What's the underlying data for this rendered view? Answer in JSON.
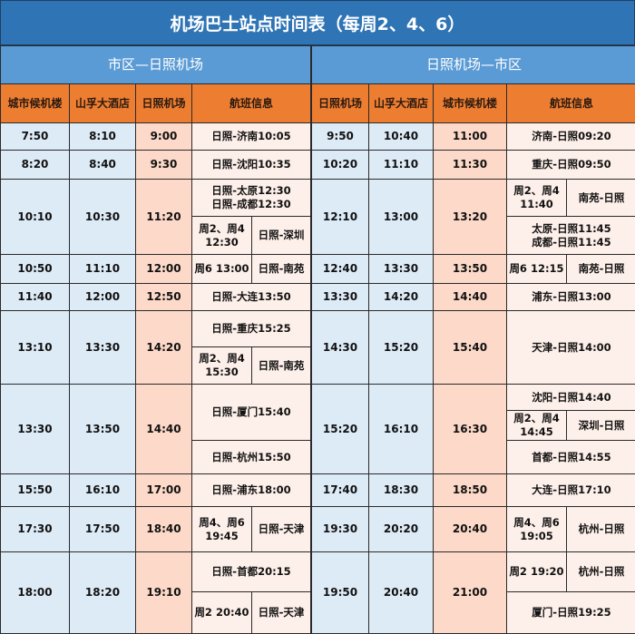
{
  "title": "机场巴士站点时间表（每周2、4、6）",
  "colors": {
    "title_bg": "#2f74b5",
    "section_bg": "#5b9bd5",
    "header_bg": "#ed7d31",
    "stop_bg": "#ddebf7",
    "terminal_bg": "#fcd9c8",
    "flight_bg": "#fdefe9"
  },
  "left": {
    "section": "市区—日照机场",
    "headers": [
      "城市候机楼",
      "山孚大酒店",
      "日照机场",
      "航班信息"
    ],
    "rows": [
      {
        "t": [
          "7:50",
          "8:10",
          "9:00"
        ],
        "flights": [
          {
            "text": "日照-济南10:05"
          }
        ]
      },
      {
        "t": [
          "8:20",
          "8:40",
          "9:30"
        ],
        "flights": [
          {
            "text": "日照-沈阳10:35"
          }
        ]
      },
      {
        "t": [
          "10:10",
          "10:30",
          "11:20"
        ],
        "flights": [
          {
            "text": "日照-太原12:30\n日照-成都12:30"
          },
          {
            "days": "周2、周4\n12:30",
            "route": "日照-深圳"
          }
        ]
      },
      {
        "t": [
          "10:50",
          "11:10",
          "12:00"
        ],
        "flights": [
          {
            "days": "周6  13:00",
            "route": "日照-南苑"
          }
        ]
      },
      {
        "t": [
          "11:40",
          "12:00",
          "12:50"
        ],
        "flights": [
          {
            "text": "日照-大连13:50"
          }
        ]
      },
      {
        "t": [
          "13:10",
          "13:30",
          "14:20"
        ],
        "flights": [
          {
            "text": "日照-重庆15:25"
          },
          {
            "days": "周2、周4\n15:30",
            "route": "日照-南苑"
          }
        ]
      },
      {
        "t": [
          "13:30",
          "13:50",
          "14:40"
        ],
        "flights": [
          {
            "text": "日照-厦门15:40"
          },
          {
            "text": "日照-杭州15:50"
          }
        ]
      },
      {
        "t": [
          "15:50",
          "16:10",
          "17:00"
        ],
        "flights": [
          {
            "text": "日照-浦东18:00"
          }
        ]
      },
      {
        "t": [
          "17:30",
          "17:50",
          "18:40"
        ],
        "flights": [
          {
            "days": "周4、周6\n19:45",
            "route": "日照-天津"
          }
        ]
      },
      {
        "t": [
          "18:00",
          "18:20",
          "19:10"
        ],
        "flights": [
          {
            "text": "日照-首都20:15"
          },
          {
            "days": "周2  20:40",
            "route": "日照-天津"
          }
        ]
      }
    ]
  },
  "right": {
    "section": "日照机场—市区",
    "headers": [
      "日照机场",
      "山孚大酒店",
      "城市候机楼",
      "航班信息"
    ],
    "rows": [
      {
        "t": [
          "9:50",
          "10:40",
          "11:00"
        ],
        "flights": [
          {
            "text": "济南-日照09:20"
          }
        ]
      },
      {
        "t": [
          "10:20",
          "11:10",
          "11:30"
        ],
        "flights": [
          {
            "text": "重庆-日照09:50"
          }
        ]
      },
      {
        "t": [
          "12:10",
          "13:00",
          "13:20"
        ],
        "flights": [
          {
            "days": "周2、周4\n11:40",
            "route": "南苑-日照"
          },
          {
            "text": "太原-日照11:45\n成都-日照11:45"
          }
        ]
      },
      {
        "t": [
          "12:40",
          "13:30",
          "13:50"
        ],
        "flights": [
          {
            "days": "周6  12:15",
            "route": "南苑-日照"
          }
        ]
      },
      {
        "t": [
          "13:30",
          "14:20",
          "14:40"
        ],
        "flights": [
          {
            "text": "浦东-日照13:00"
          }
        ]
      },
      {
        "t": [
          "14:30",
          "15:20",
          "15:40"
        ],
        "flights": [
          {
            "text": "天津-日照14:00"
          }
        ]
      },
      {
        "t": [
          "15:20",
          "16:10",
          "16:30"
        ],
        "flights": [
          {
            "text": "沈阳-日照14:40"
          },
          {
            "days": "周2、周4\n14:45",
            "route": "深圳-日照"
          },
          {
            "text": "首都-日照14:55"
          }
        ]
      },
      {
        "t": [
          "17:40",
          "18:30",
          "18:50"
        ],
        "flights": [
          {
            "text": "大连-日照17:10"
          }
        ]
      },
      {
        "t": [
          "19:30",
          "20:20",
          "20:40"
        ],
        "flights": [
          {
            "days": "周4、周6\n19:05",
            "route": "杭州-日照"
          }
        ]
      },
      {
        "t": [
          "19:50",
          "20:40",
          "21:00"
        ],
        "flights": [
          {
            "days": "周2  19:20",
            "route": "杭州-日照"
          },
          {
            "text": "厦门-日照19:25"
          }
        ]
      }
    ]
  }
}
